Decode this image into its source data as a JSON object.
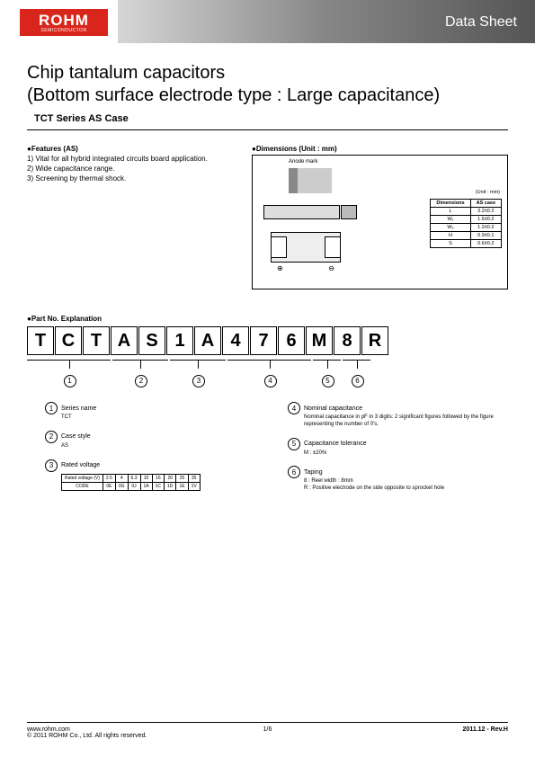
{
  "header": {
    "logo_main": "ROHM",
    "logo_sub": "SEMICONDUCTOR",
    "label": "Data Sheet"
  },
  "title": {
    "line1": "Chip tantalum capacitors",
    "line2": "(Bottom surface electrode type : Large capacitance)",
    "sub": "TCT Series AS Case"
  },
  "features": {
    "heading": "●Features (AS)",
    "items": [
      "1) Vital for all hybrid integrated circuits board application.",
      "2) Wide capacitance range.",
      "3) Screening by thermal shock."
    ]
  },
  "dimensions": {
    "heading": "●Dimensions (Unit : mm)",
    "anode": "Anode mark",
    "unit": "(Unit : mm)",
    "table_head": [
      "Dimensions",
      "AS case"
    ],
    "rows": [
      [
        "L",
        "3.2±0.2"
      ],
      [
        "W₁",
        "1.6±0.2"
      ],
      [
        "W₂",
        "1.2±0.2"
      ],
      [
        "H",
        "0.9±0.1"
      ],
      [
        "S",
        "0.6±0.2"
      ]
    ]
  },
  "partno": {
    "heading": "●Part No. Explanation",
    "chars": [
      "T",
      "C",
      "T",
      "A",
      "S",
      "1",
      "A",
      "4",
      "7",
      "6",
      "M",
      "8",
      "R"
    ],
    "group_widths": [
      93,
      62,
      62,
      93,
      31,
      31
    ],
    "group_nums": [
      "1",
      "2",
      "3",
      "4",
      "5",
      "6"
    ]
  },
  "explain": {
    "c1": {
      "label": "Series name",
      "text": "TCT"
    },
    "c2": {
      "label": "Case style",
      "text": "AS"
    },
    "c3": {
      "label": "Rated voltage"
    },
    "c4": {
      "label": "Nominal capacitance",
      "text": "Nominal capacitance in pF in 3 digits: 2 significant figures followed by the figure representing the number of 0's."
    },
    "c5": {
      "label": "Capacitance tolerance",
      "text": "M : ±20%"
    },
    "c6": {
      "label": "Taping",
      "text1": "8 : Reel width : 8mm",
      "text2": "R : Positive electrode on the side opposite to sprocket hole"
    },
    "rv_head": [
      "Rated voltage (V)",
      "2.5",
      "4",
      "6.3",
      "10",
      "16",
      "20",
      "25",
      "35"
    ],
    "rv_row": [
      "CODE",
      "0E",
      "0G",
      "0J",
      "1A",
      "1C",
      "1D",
      "1E",
      "1V"
    ]
  },
  "footer": {
    "url": "www.rohm.com",
    "copy": "© 2011 ROHM Co., Ltd. All rights reserved.",
    "page": "1/6",
    "rev": "2011.12 - Rev.H"
  }
}
